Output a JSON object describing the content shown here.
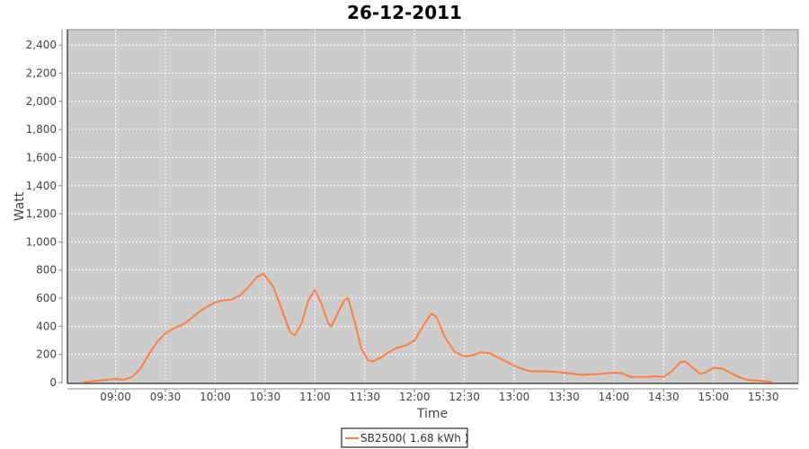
{
  "chart_data": {
    "type": "line",
    "title": "26-12-2011",
    "xlabel": "Time",
    "ylabel": "Watt",
    "ylim": [
      0,
      2510
    ],
    "xlim": [
      "08:31",
      "15:51"
    ],
    "yticks": [
      "0",
      "200",
      "400",
      "600",
      "800",
      "1,000",
      "1,200",
      "1,400",
      "1,600",
      "1,800",
      "2,000",
      "2,200",
      "2,400"
    ],
    "xticks": [
      "09:00",
      "09:30",
      "10:00",
      "10:30",
      "11:00",
      "11:30",
      "12:00",
      "12:30",
      "13:00",
      "13:30",
      "14:00",
      "14:30",
      "15:00",
      "15:30"
    ],
    "grid": true,
    "background": "#cccccc",
    "legend_position": "bottom",
    "series": [
      {
        "name": "SB2500( 1.68 kWh )",
        "color": "#ff7f3f",
        "x": [
          "08:40",
          "08:50",
          "09:00",
          "09:05",
          "09:10",
          "09:15",
          "09:20",
          "09:25",
          "09:30",
          "09:35",
          "09:40",
          "09:45",
          "09:50",
          "09:55",
          "10:00",
          "10:05",
          "10:10",
          "10:15",
          "10:20",
          "10:25",
          "10:29",
          "10:35",
          "10:40",
          "10:45",
          "10:48",
          "10:52",
          "10:56",
          "11:00",
          "11:04",
          "11:08",
          "11:10",
          "11:14",
          "11:18",
          "11:20",
          "11:24",
          "11:28",
          "11:32",
          "11:35",
          "11:40",
          "11:45",
          "11:50",
          "11:55",
          "12:00",
          "12:05",
          "12:10",
          "12:13",
          "12:18",
          "12:24",
          "12:30",
          "12:35",
          "12:40",
          "12:45",
          "12:50",
          "12:55",
          "13:00",
          "13:05",
          "13:10",
          "13:20",
          "13:30",
          "13:40",
          "13:50",
          "14:00",
          "14:05",
          "14:10",
          "14:20",
          "14:25",
          "14:30",
          "14:35",
          "14:40",
          "14:43",
          "14:48",
          "14:52",
          "14:55",
          "15:00",
          "15:05",
          "15:10",
          "15:15",
          "15:20",
          "15:30",
          "15:35"
        ],
        "y": [
          0,
          15,
          25,
          20,
          40,
          100,
          200,
          290,
          350,
          385,
          410,
          450,
          500,
          540,
          570,
          585,
          590,
          620,
          680,
          750,
          775,
          680,
          520,
          360,
          335,
          420,
          580,
          660,
          560,
          420,
          400,
          500,
          590,
          600,
          430,
          240,
          160,
          150,
          180,
          220,
          250,
          265,
          300,
          400,
          490,
          470,
          330,
          220,
          185,
          195,
          215,
          210,
          180,
          150,
          120,
          95,
          80,
          80,
          70,
          55,
          60,
          70,
          65,
          40,
          40,
          45,
          40,
          80,
          145,
          150,
          100,
          60,
          70,
          105,
          100,
          70,
          40,
          20,
          10,
          5
        ]
      }
    ]
  }
}
